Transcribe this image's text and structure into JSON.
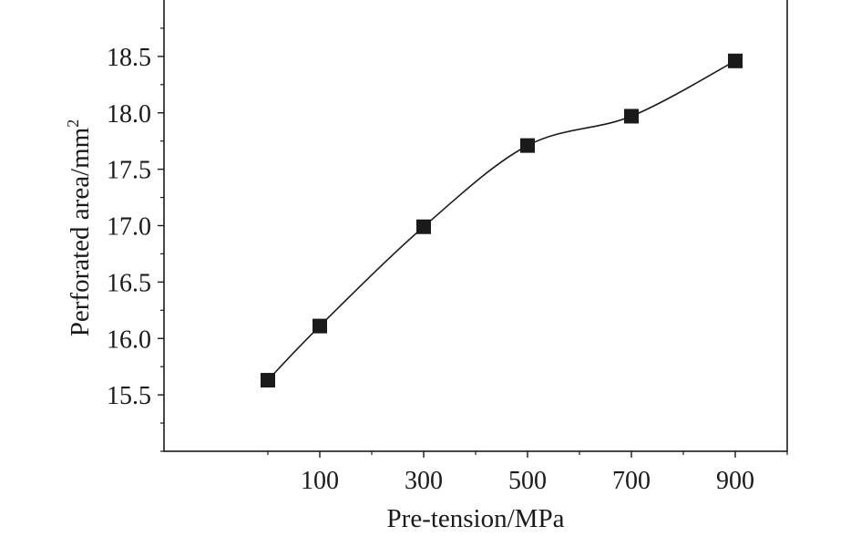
{
  "chart_data": {
    "type": "line",
    "title": "",
    "xlabel": "Pre-tension/MPa",
    "ylabel_main": "Perforated area/mm",
    "ylabel_sup": "2",
    "x_ticks": [
      100,
      300,
      500,
      700,
      900
    ],
    "x_tick_labels": [
      "100",
      "300",
      "500",
      "700",
      "900"
    ],
    "y_ticks": [
      15.5,
      16.0,
      16.5,
      17.0,
      17.5,
      18.0,
      18.5
    ],
    "y_tick_labels": [
      "15.5",
      "16.0",
      "16.5",
      "17.0",
      "17.5",
      "18.0",
      "18.5"
    ],
    "xlim": [
      -200,
      1000
    ],
    "ylim": [
      15.0,
      19.0
    ],
    "grid": false,
    "series": [
      {
        "marker": "square",
        "color": "#1a1a1a",
        "x": [
          0,
          100,
          300,
          500,
          700,
          900
        ],
        "y": [
          15.63,
          16.11,
          16.99,
          17.71,
          17.97,
          18.46
        ]
      }
    ]
  }
}
